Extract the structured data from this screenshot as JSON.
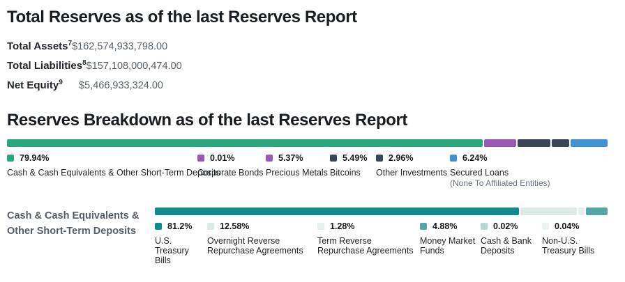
{
  "total_reserves": {
    "title": "Total Reserves as of the last Reserves Report",
    "rows": [
      {
        "label": "Total Assets",
        "footnote": "7",
        "value": "$162,574,933,798.00"
      },
      {
        "label": "Total Liabilities",
        "footnote": "8",
        "value": "$157,108,000,474.00"
      },
      {
        "label": "Net Equity",
        "footnote": "9",
        "value": "$5,466,933,324.00"
      }
    ]
  },
  "breakdown": {
    "title": "Reserves Breakdown as of the last Reserves Report",
    "type": "stacked-bar",
    "segments": [
      {
        "label": "Cash & Cash Equivalents & Other Short-Term Deposits",
        "pct": 79.94,
        "pct_label": "79.94%",
        "color": "#29a87d"
      },
      {
        "label": "Corporate Bonds",
        "pct": 0.01,
        "pct_label": "0.01%",
        "color": "#9b59b6"
      },
      {
        "label": "Precious Metals",
        "pct": 5.37,
        "pct_label": "5.37%",
        "color": "#9b59b6"
      },
      {
        "label": "Bitcoins",
        "pct": 5.49,
        "pct_label": "5.49%",
        "color": "#3a455a"
      },
      {
        "label": "Other Investments",
        "pct": 2.96,
        "pct_label": "2.96%",
        "color": "#3a455a"
      },
      {
        "label": "Secured Loans",
        "note": "(None To Affiliated Entities)",
        "pct": 6.24,
        "pct_label": "6.24%",
        "color": "#3e92d5"
      }
    ]
  },
  "cash_breakdown": {
    "side_label_line1": "Cash & Cash Equivalents &",
    "side_label_line2": "Other Short-Term Deposits",
    "type": "stacked-bar",
    "segments": [
      {
        "label": "U.S. Treasury Bills",
        "pct": 81.2,
        "pct_label": "81.2%",
        "color": "#108a8c"
      },
      {
        "label": "Overnight Reverse Repurchase Agreements",
        "pct": 12.58,
        "pct_label": "12.58%",
        "color": "#dde9e5"
      },
      {
        "label": "Term Reverse Repurchase Agreements",
        "pct": 1.28,
        "pct_label": "1.28%",
        "color": "#e8efec"
      },
      {
        "label": "Money Market Funds",
        "pct": 4.88,
        "pct_label": "4.88%",
        "color": "#52a6a3"
      },
      {
        "label": "Cash & Bank Deposits",
        "pct": 0.02,
        "pct_label": "0.02%",
        "color": "#b5d8d2"
      },
      {
        "label": "Non-U.S. Treasury Bills",
        "pct": 0.04,
        "pct_label": "0.04%",
        "color": "#edf3f0"
      }
    ]
  },
  "chart_data": [
    {
      "type": "bar",
      "variant": "stacked-horizontal",
      "title": "Reserves Breakdown as of the last Reserves Report",
      "categories": [
        "Cash & Cash Equivalents & Other Short-Term Deposits",
        "Corporate Bonds",
        "Precious Metals",
        "Bitcoins",
        "Other Investments",
        "Secured Loans (None To Affiliated Entities)"
      ],
      "values": [
        79.94,
        0.01,
        5.37,
        5.49,
        2.96,
        6.24
      ],
      "unit": "%"
    },
    {
      "type": "bar",
      "variant": "stacked-horizontal",
      "title": "Cash & Cash Equivalents & Other Short-Term Deposits",
      "categories": [
        "U.S. Treasury Bills",
        "Overnight Reverse Repurchase Agreements",
        "Term Reverse Repurchase Agreements",
        "Money Market Funds",
        "Cash & Bank Deposits",
        "Non-U.S. Treasury Bills"
      ],
      "values": [
        81.2,
        12.58,
        1.28,
        4.88,
        0.02,
        0.04
      ],
      "unit": "%"
    }
  ]
}
